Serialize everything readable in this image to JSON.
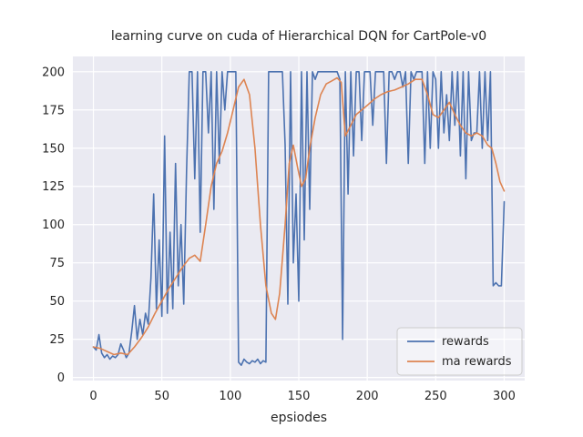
{
  "figure": {
    "background": "#ffffff",
    "axes_background": "#eaeaf2",
    "grid_color": "#ffffff",
    "text_color": "#262626"
  },
  "chart_data": {
    "type": "line",
    "title": "learning curve on cuda of Hierarchical DQN for CartPole-v0",
    "xlabel": "epsiodes",
    "ylabel": "",
    "xlim": [
      -15,
      315
    ],
    "ylim": [
      -2,
      210
    ],
    "xticks": [
      0,
      50,
      100,
      150,
      200,
      250,
      300
    ],
    "yticks": [
      0,
      25,
      50,
      75,
      100,
      125,
      150,
      175,
      200
    ],
    "grid": true,
    "legend": {
      "position": "lower right",
      "entries": [
        "rewards",
        "ma rewards"
      ]
    },
    "series": [
      {
        "name": "rewards",
        "color": "#4c72b0",
        "x_start": 0,
        "x_step": 2,
        "values": [
          20,
          18,
          28,
          16,
          13,
          15,
          12,
          14,
          13,
          15,
          22,
          18,
          13,
          16,
          30,
          47,
          25,
          38,
          28,
          42,
          35,
          65,
          120,
          45,
          90,
          40,
          158,
          42,
          95,
          45,
          140,
          60,
          100,
          48,
          135,
          200,
          200,
          130,
          200,
          95,
          200,
          200,
          160,
          200,
          110,
          200,
          140,
          200,
          175,
          200,
          200,
          200,
          200,
          10,
          8,
          12,
          10,
          9,
          11,
          10,
          12,
          9,
          11,
          10,
          200,
          200,
          200,
          200,
          200,
          200,
          152,
          48,
          200,
          75,
          120,
          50,
          200,
          90,
          200,
          110,
          200,
          195,
          200,
          200,
          200,
          200,
          200,
          200,
          200,
          200,
          195,
          25,
          200,
          120,
          200,
          145,
          200,
          200,
          155,
          200,
          200,
          200,
          165,
          200,
          200,
          200,
          200,
          140,
          200,
          200,
          195,
          200,
          200,
          190,
          200,
          140,
          200,
          195,
          200,
          200,
          200,
          140,
          200,
          150,
          200,
          195,
          150,
          200,
          160,
          185,
          155,
          200,
          165,
          200,
          145,
          200,
          130,
          200,
          155,
          160,
          160,
          200,
          150,
          200,
          155,
          200,
          60,
          62,
          60,
          60,
          115
        ]
      },
      {
        "name": "ma rewards",
        "color": "#dd8452",
        "x": [
          0,
          5,
          10,
          15,
          20,
          25,
          30,
          35,
          40,
          45,
          50,
          55,
          60,
          65,
          70,
          74,
          78,
          82,
          86,
          90,
          94,
          98,
          102,
          106,
          110,
          114,
          118,
          122,
          126,
          130,
          133,
          136,
          140,
          143,
          146,
          149,
          152,
          155,
          158,
          162,
          166,
          170,
          174,
          178,
          181,
          184,
          188,
          192,
          196,
          200,
          205,
          210,
          215,
          220,
          225,
          230,
          235,
          240,
          244,
          248,
          252,
          256,
          260,
          264,
          268,
          272,
          276,
          280,
          284,
          288,
          291,
          294,
          297,
          300
        ],
        "values": [
          20,
          19,
          17,
          15,
          16,
          15,
          20,
          26,
          33,
          42,
          50,
          58,
          65,
          72,
          78,
          80,
          76,
          100,
          125,
          140,
          148,
          160,
          175,
          190,
          195,
          185,
          150,
          100,
          60,
          42,
          38,
          55,
          100,
          140,
          152,
          138,
          125,
          130,
          150,
          170,
          185,
          192,
          194,
          196,
          193,
          158,
          165,
          172,
          175,
          178,
          182,
          185,
          187,
          188,
          190,
          192,
          195,
          195,
          185,
          172,
          170,
          175,
          180,
          172,
          165,
          160,
          158,
          160,
          158,
          152,
          150,
          140,
          128,
          122
        ]
      }
    ]
  }
}
